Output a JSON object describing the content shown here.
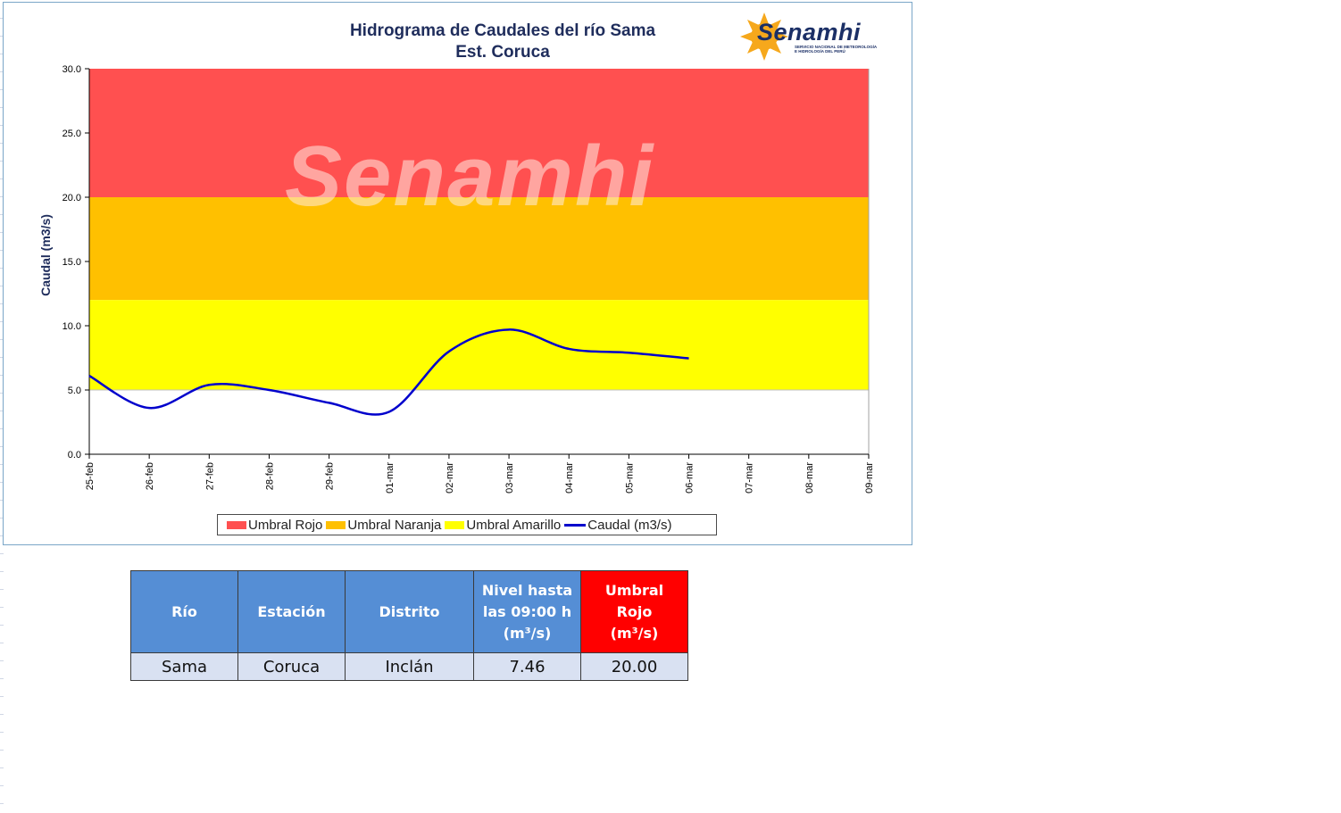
{
  "chart": {
    "title_line1": "Hidrograma de Caudales del río Sama",
    "title_line2": "Est. Coruca",
    "logo_text": "Senamhi",
    "logo_subtext_1": "SERVICIO NACIONAL DE METEOROLOGÍA",
    "logo_subtext_2": "E HIDROLOGÍA DEL PERÚ",
    "watermark_text": "Senamhi"
  },
  "chart_data": {
    "type": "line",
    "ylabel": "Caudal (m3/s)",
    "xlabel": "",
    "ylim": [
      0,
      30
    ],
    "yticks": [
      "0.0",
      "5.0",
      "10.0",
      "15.0",
      "20.0",
      "25.0",
      "30.0"
    ],
    "x_categories": [
      "25-feb",
      "26-feb",
      "27-feb",
      "28-feb",
      "29-feb",
      "01-mar",
      "02-mar",
      "03-mar",
      "04-mar",
      "05-mar",
      "06-mar",
      "07-mar",
      "08-mar",
      "09-mar"
    ],
    "bands": [
      {
        "name": "Umbral Rojo",
        "from": 20,
        "to": 30,
        "color": "#ff5050"
      },
      {
        "name": "Umbral Naranja",
        "from": 12,
        "to": 20,
        "color": "#ffc000"
      },
      {
        "name": "Umbral Amarillo",
        "from": 5,
        "to": 12,
        "color": "#ffff00"
      }
    ],
    "series": [
      {
        "name": "Caudal (m3/s)",
        "color": "#0000cc",
        "points": [
          {
            "x": "25-feb",
            "y": 6.1
          },
          {
            "x": "26-feb",
            "y": 3.6
          },
          {
            "x": "27-feb",
            "y": 5.4
          },
          {
            "x": "28-feb",
            "y": 5.0
          },
          {
            "x": "29-feb",
            "y": 4.0
          },
          {
            "x": "01-mar",
            "y": 3.3
          },
          {
            "x": "02-mar",
            "y": 8.0
          },
          {
            "x": "03-mar",
            "y": 9.7
          },
          {
            "x": "04-mar",
            "y": 8.2
          },
          {
            "x": "05-mar",
            "y": 7.9
          },
          {
            "x": "06-mar",
            "y": 7.46
          }
        ]
      }
    ],
    "legend": [
      "Umbral Rojo",
      "Umbral Naranja",
      "Umbral Amarillo",
      "Caudal (m3/s)"
    ],
    "legend_position": "bottom",
    "grid": false
  },
  "table": {
    "headers": {
      "rio": "Río",
      "estacion": "Estación",
      "distrito": "Distrito",
      "nivel_line1": "Nivel hasta",
      "nivel_line2": "las 09:00 h",
      "nivel_line3": "(m³/s)",
      "umbral_line1": "Umbral Rojo",
      "umbral_line2": "(m³/s)"
    },
    "row": {
      "rio": "Sama",
      "estacion": "Coruca",
      "distrito": "Inclán",
      "nivel": "7.46",
      "umbral": "20.00"
    },
    "colors": {
      "header_blue": "#558ed5",
      "header_red": "#ff0000",
      "cell_bg": "#d9e1f2"
    }
  }
}
